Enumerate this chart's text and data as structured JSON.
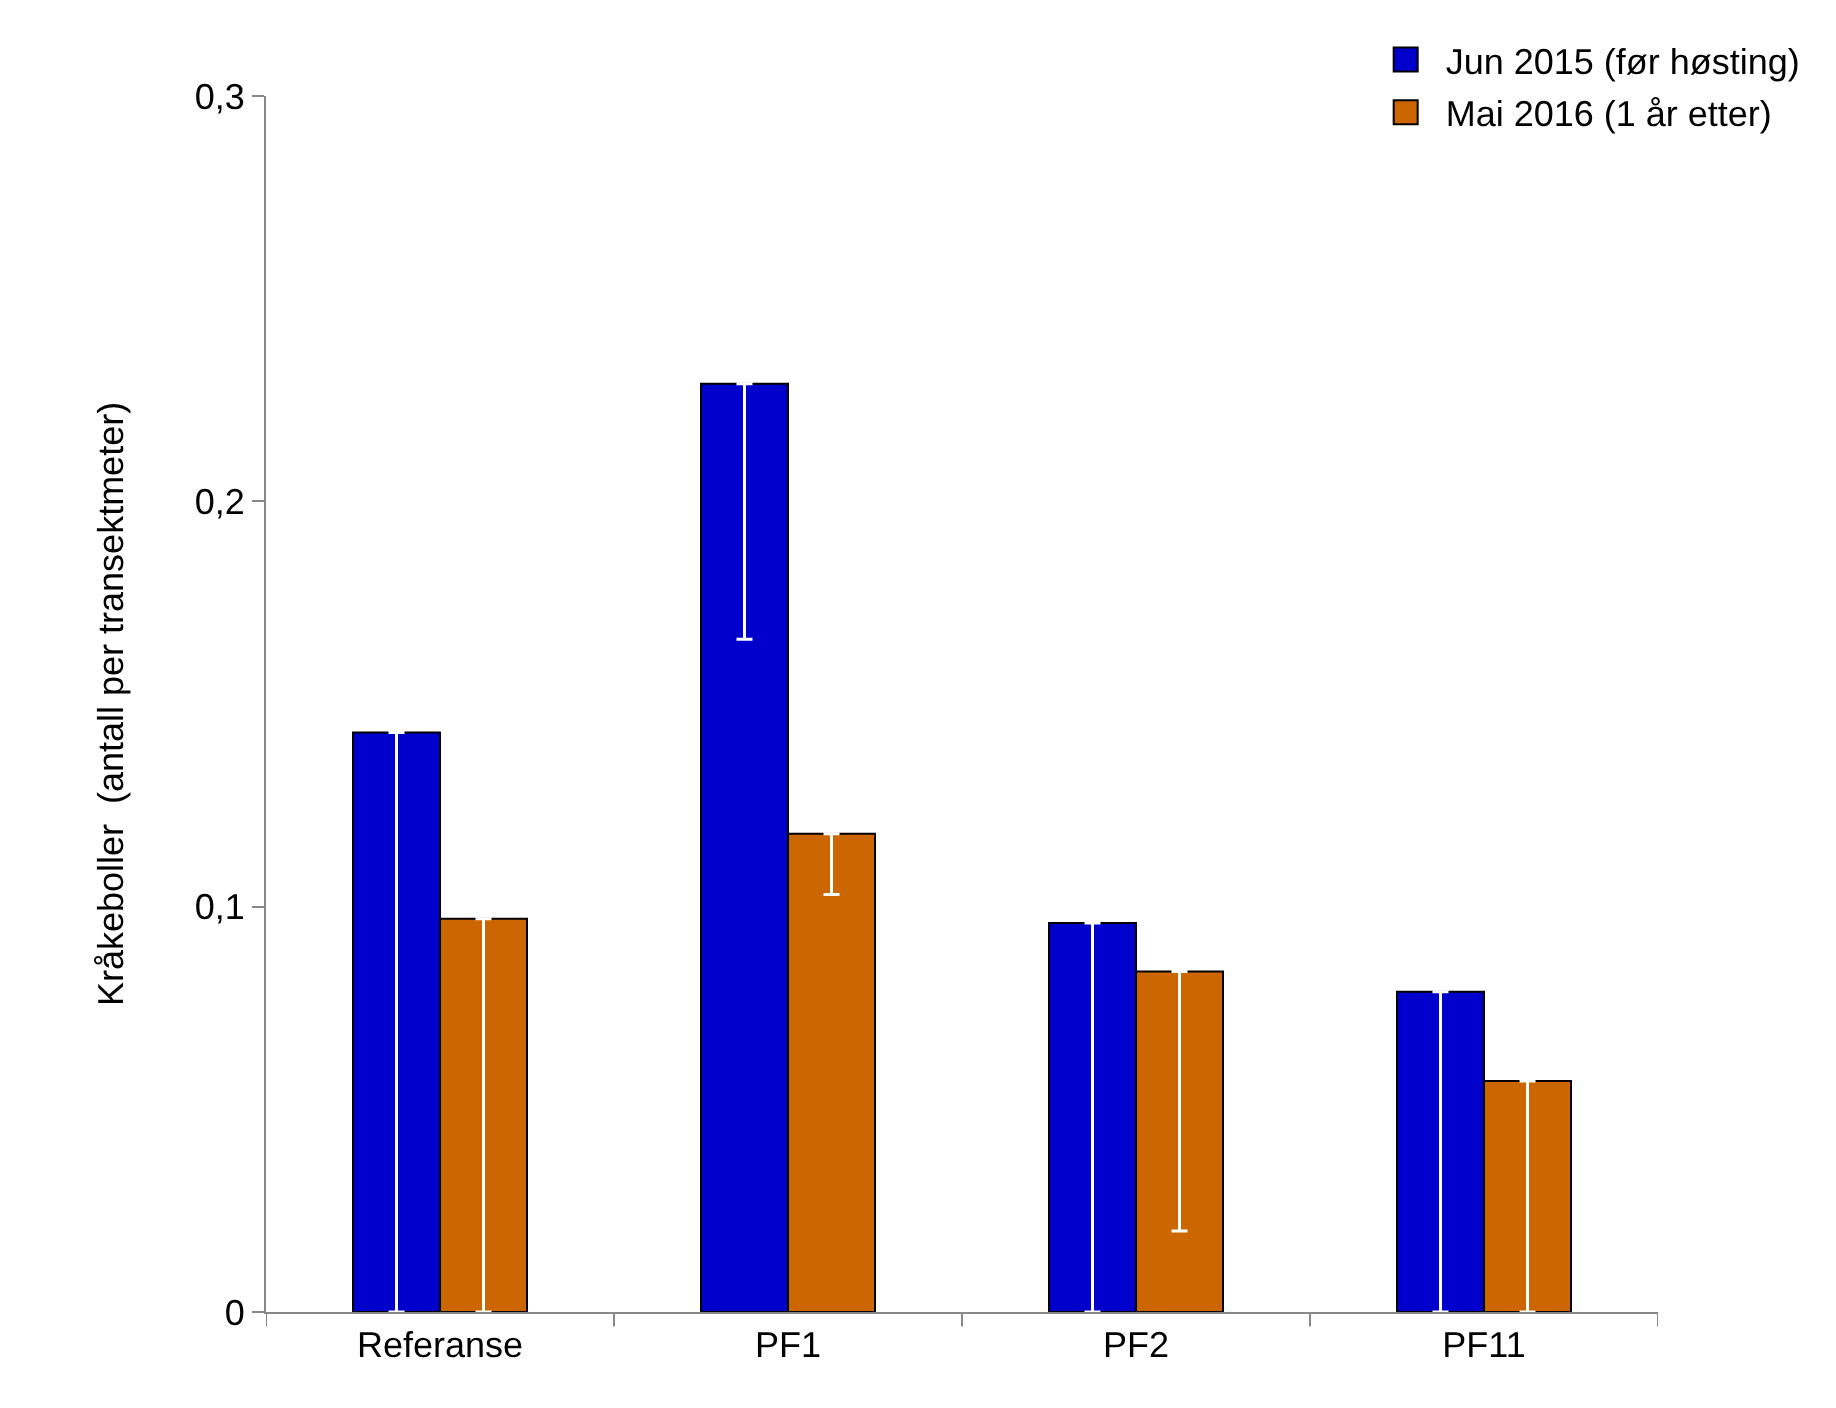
{
  "chart_data": {
    "type": "bar",
    "ylabel": "Kråkeboller  (antall per transektmeter)",
    "categories": [
      "Referanse",
      "PF1",
      "PF2",
      "PF11"
    ],
    "series": [
      {
        "name": "Jun 2015 (før høsting)",
        "color": "#0000cc",
        "values": [
          0.143,
          0.229,
          0.096,
          0.079
        ],
        "errors": [
          [
            0,
            0.143
          ],
          [
            0.166,
            0.229
          ],
          [
            0,
            0.096
          ],
          [
            0,
            0.079
          ]
        ]
      },
      {
        "name": "Mai 2016 (1 år etter)",
        "color": "#cc6600",
        "values": [
          0.097,
          0.118,
          0.084,
          0.057
        ],
        "errors": [
          [
            0,
            0.097
          ],
          [
            0.103,
            0.118
          ],
          [
            0.02,
            0.084
          ],
          [
            0,
            0.057
          ]
        ]
      }
    ],
    "ylim": [
      0,
      0.3
    ],
    "yticks": [
      {
        "value": 0,
        "label": "0"
      },
      {
        "value": 0.1,
        "label": "0,1"
      },
      {
        "value": 0.2,
        "label": "0,2"
      },
      {
        "value": 0.3,
        "label": "0,3"
      }
    ],
    "grid": false,
    "legend": "top right"
  }
}
